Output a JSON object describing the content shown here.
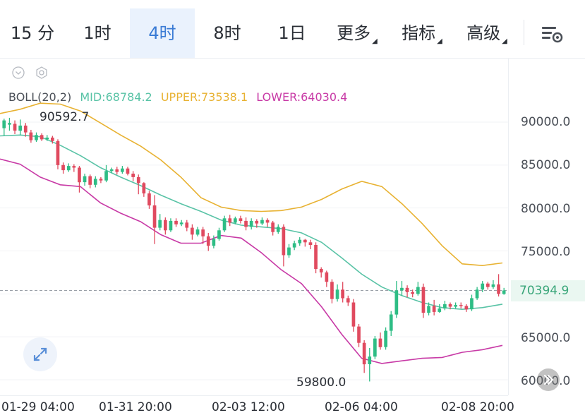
{
  "tabs": [
    {
      "label": "15 分",
      "active": false,
      "dropdown": false
    },
    {
      "label": "1时",
      "active": false,
      "dropdown": false
    },
    {
      "label": "4时",
      "active": true,
      "dropdown": false
    },
    {
      "label": "8时",
      "active": false,
      "dropdown": false
    },
    {
      "label": "1日",
      "active": false,
      "dropdown": false
    },
    {
      "label": "更多",
      "active": false,
      "dropdown": true
    },
    {
      "label": "指标",
      "active": false,
      "dropdown": true
    },
    {
      "label": "高级",
      "active": false,
      "dropdown": true
    }
  ],
  "indicator": {
    "name": "BOLL(20,2)",
    "mid": "MID:68784.2",
    "upper": "UPPER:73538.1",
    "lower": "LOWER:64030.4"
  },
  "y_axis": [
    "90000.0",
    "85000.0",
    "80000.0",
    "75000.0",
    "65000.0",
    "60000.0"
  ],
  "current_price": "70394.9",
  "x_axis": [
    "01-29 04:00",
    "01-31 20:00",
    "02-03 12:00",
    "02-06 04:00",
    "02-08 20:00"
  ],
  "annotations": {
    "high": "90592.7",
    "low": "59800.0"
  },
  "colors": {
    "up": "#2ebd85",
    "down": "#e04a5f",
    "mid": "#59c3a6",
    "upper": "#e8b232",
    "lower": "#c83aa6",
    "active_tab": "#3a7bd5"
  },
  "icons": {
    "settings": "chart-settings-icon",
    "collapse": "chevron-down-icon",
    "gear": "gear-icon",
    "expand": "expand-arrows-icon"
  },
  "chart_data": {
    "type": "candlestick",
    "ylim": [
      59000,
      93000
    ],
    "x": [
      "01-29 04:00",
      "01-31 20:00",
      "02-03 12:00",
      "02-06 04:00",
      "02-08 20:00"
    ],
    "candles": [
      [
        89300,
        90200,
        88400,
        90400
      ],
      [
        89700,
        89900,
        89000,
        90500
      ],
      [
        89800,
        89000,
        88600,
        90200
      ],
      [
        89000,
        89600,
        88500,
        90300
      ],
      [
        89600,
        88800,
        88300,
        89900
      ],
      [
        88800,
        87900,
        87600,
        89100
      ],
      [
        87900,
        88500,
        87700,
        88800
      ],
      [
        88500,
        88000,
        87800,
        88700
      ],
      [
        88000,
        88200,
        87800,
        88500
      ],
      [
        88200,
        87800,
        87500,
        88400
      ],
      [
        87800,
        85000,
        84500,
        88000
      ],
      [
        85000,
        84400,
        84000,
        85300
      ],
      [
        84400,
        84900,
        84200,
        85200
      ],
      [
        84900,
        84700,
        84200,
        85100
      ],
      [
        84700,
        83000,
        81800,
        84900
      ],
      [
        83000,
        83700,
        82600,
        84000
      ],
      [
        83700,
        82700,
        82300,
        83900
      ],
      [
        82700,
        83400,
        82400,
        83700
      ],
      [
        83400,
        83200,
        82900,
        83600
      ],
      [
        83200,
        84300,
        83000,
        85000
      ],
      [
        84300,
        84500,
        84100,
        84700
      ],
      [
        84500,
        84200,
        83900,
        84800
      ],
      [
        84200,
        84600,
        84000,
        84900
      ],
      [
        84600,
        84000,
        83800,
        84800
      ],
      [
        84000,
        83600,
        83100,
        84300
      ],
      [
        83600,
        82900,
        81600,
        83900
      ],
      [
        82900,
        81700,
        81300,
        83000
      ],
      [
        81700,
        80300,
        79900,
        82000
      ],
      [
        80300,
        77700,
        75800,
        81500
      ],
      [
        77700,
        78600,
        77400,
        79300
      ],
      [
        78600,
        77400,
        76900,
        78900
      ],
      [
        77400,
        78500,
        77200,
        78800
      ],
      [
        78500,
        78100,
        77800,
        78800
      ],
      [
        78100,
        78300,
        77900,
        78600
      ],
      [
        78300,
        77700,
        77300,
        78600
      ],
      [
        77700,
        76900,
        76300,
        78100
      ],
      [
        76900,
        77500,
        76700,
        77800
      ],
      [
        77500,
        76700,
        75800,
        77800
      ],
      [
        76700,
        75600,
        75000,
        77100
      ],
      [
        75600,
        76400,
        75300,
        76800
      ],
      [
        76400,
        77400,
        76200,
        77700
      ],
      [
        77400,
        78800,
        77200,
        79100
      ],
      [
        78800,
        78300,
        77900,
        79200
      ],
      [
        78300,
        78800,
        78100,
        79000
      ],
      [
        78800,
        78500,
        78200,
        79100
      ],
      [
        78500,
        77800,
        77400,
        78900
      ],
      [
        77800,
        78500,
        77500,
        78800
      ],
      [
        78500,
        78200,
        77700,
        78700
      ],
      [
        78200,
        78600,
        78000,
        78900
      ],
      [
        78600,
        78300,
        77800,
        78800
      ],
      [
        78300,
        77200,
        76800,
        78500
      ],
      [
        77200,
        77800,
        77000,
        78100
      ],
      [
        77800,
        74500,
        73200,
        78100
      ],
      [
        74500,
        75400,
        74200,
        75800
      ],
      [
        75400,
        75900,
        75100,
        76200
      ],
      [
        75900,
        76300,
        75600,
        76600
      ],
      [
        76300,
        76000,
        75500,
        76400
      ],
      [
        76000,
        75700,
        75200,
        76300
      ],
      [
        75700,
        72900,
        72400,
        76000
      ],
      [
        72900,
        72500,
        71900,
        73100
      ],
      [
        72500,
        71400,
        70800,
        72700
      ],
      [
        71400,
        69400,
        68900,
        71700
      ],
      [
        69400,
        70500,
        69100,
        71100
      ],
      [
        70500,
        69500,
        69000,
        71400
      ],
      [
        69500,
        69000,
        68600,
        69800
      ],
      [
        69000,
        66200,
        65600,
        69400
      ],
      [
        66200,
        64300,
        63800,
        66500
      ],
      [
        64300,
        61800,
        60800,
        64600
      ],
      [
        61800,
        62700,
        59800,
        63700
      ],
      [
        62700,
        64800,
        62400,
        65100
      ],
      [
        64800,
        63800,
        63500,
        65500
      ],
      [
        63800,
        65700,
        63500,
        66100
      ],
      [
        65700,
        67600,
        65100,
        68000
      ],
      [
        67600,
        70400,
        67200,
        71500
      ],
      [
        70400,
        70700,
        69800,
        71500
      ],
      [
        70700,
        70200,
        69600,
        71000
      ],
      [
        70200,
        70000,
        69600,
        70500
      ],
      [
        70000,
        70800,
        69800,
        71400
      ],
      [
        70800,
        67800,
        67200,
        71200
      ],
      [
        67800,
        68600,
        67500,
        69000
      ],
      [
        68600,
        67900,
        67500,
        69300
      ],
      [
        67900,
        68300,
        67800,
        68800
      ],
      [
        68300,
        68800,
        68100,
        69200
      ],
      [
        68800,
        68500,
        68200,
        69000
      ],
      [
        68500,
        68700,
        68300,
        69000
      ],
      [
        68700,
        68600,
        68300,
        69000
      ],
      [
        68600,
        68200,
        67900,
        68800
      ],
      [
        68200,
        69500,
        68000,
        69900
      ],
      [
        69500,
        70500,
        69300,
        70800
      ],
      [
        70500,
        71200,
        70200,
        71500
      ],
      [
        71200,
        70800,
        70500,
        71400
      ],
      [
        70800,
        71100,
        70600,
        71600
      ],
      [
        71100,
        70000,
        69700,
        72300
      ],
      [
        70000,
        70400,
        69900,
        70700
      ]
    ],
    "bands": {
      "upper": [
        91000,
        91500,
        92200,
        92100,
        91300,
        89900,
        88500,
        87200,
        85600,
        83600,
        81200,
        80100,
        79700,
        79600,
        79700,
        80100,
        81000,
        82200,
        83100,
        82500,
        80500,
        78200,
        75600,
        73500,
        73300,
        73600
      ],
      "mid": [
        88400,
        88500,
        88300,
        87300,
        86100,
        84700,
        83600,
        82600,
        81500,
        80500,
        79600,
        78600,
        78000,
        77800,
        77600,
        77100,
        76000,
        74200,
        72300,
        70800,
        69800,
        69000,
        68400,
        68200,
        68400,
        68800
      ],
      "lower": [
        85700,
        85100,
        83600,
        82700,
        82500,
        80600,
        79400,
        78400,
        76900,
        75900,
        75900,
        76800,
        76500,
        74800,
        72800,
        71200,
        68500,
        65300,
        62500,
        61900,
        62200,
        62500,
        62600,
        63200,
        63500,
        64000
      ]
    }
  }
}
